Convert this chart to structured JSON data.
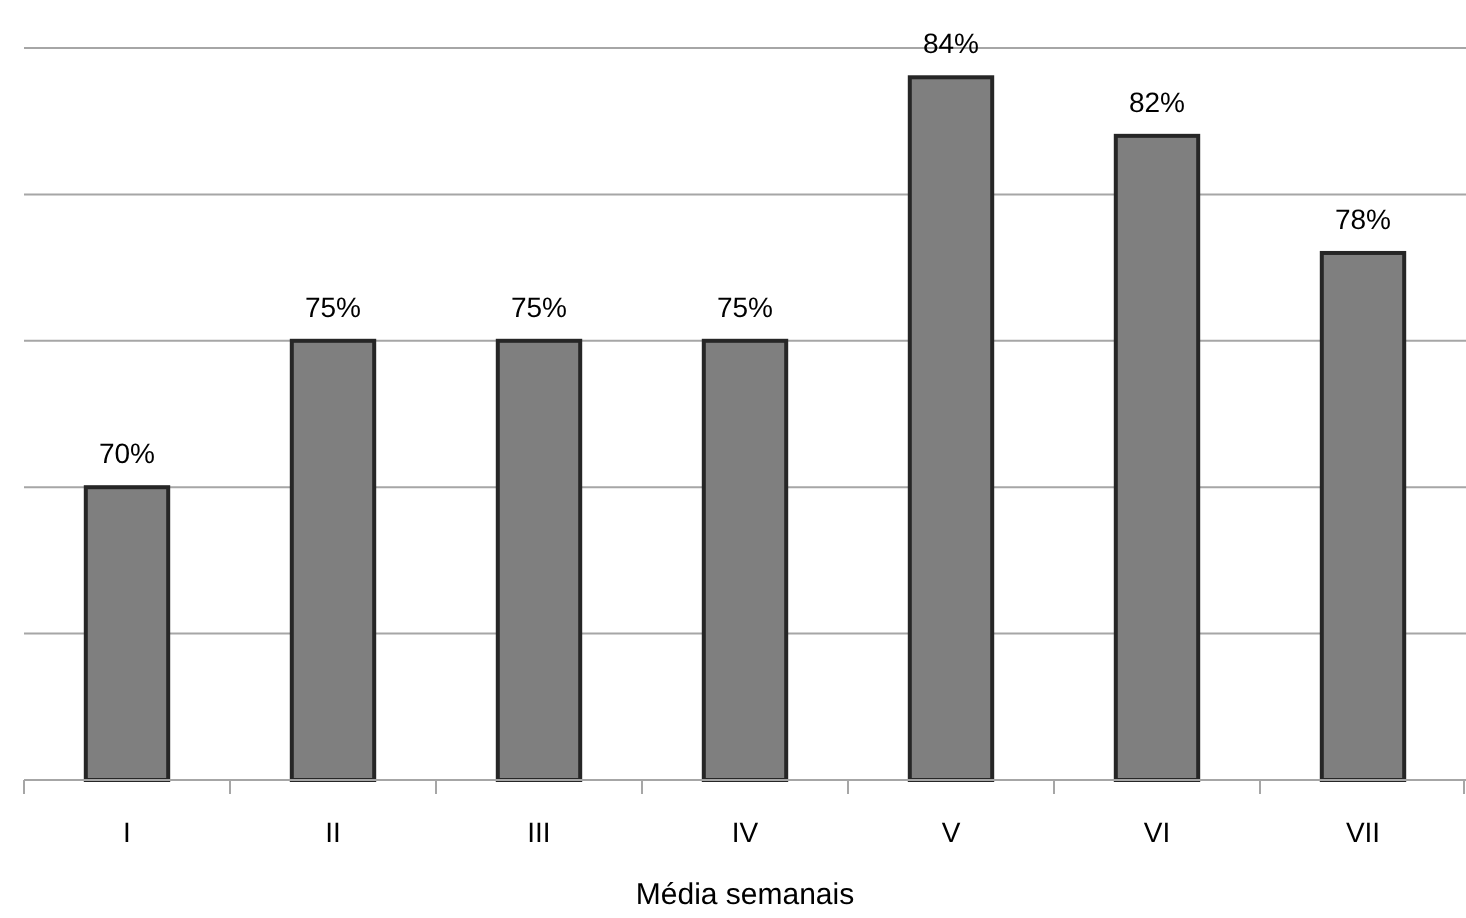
{
  "chart_data": {
    "type": "bar",
    "xlabel": "Média semanais",
    "categories": [
      "I",
      "II",
      "III",
      "IV",
      "V",
      "VI",
      "VII"
    ],
    "values": [
      70,
      75,
      75,
      75,
      84,
      82,
      78
    ],
    "value_labels": [
      "70%",
      "75%",
      "75%",
      "75%",
      "84%",
      "82%",
      "78%"
    ],
    "color": "#7f7f7f",
    "ylim": [
      60,
      85
    ],
    "yticks": [
      {
        "value": 60,
        "label": null
      },
      {
        "value": 65,
        "label": null
      },
      {
        "value": 70,
        "label": null
      },
      {
        "value": 75,
        "label": null
      },
      {
        "value": 80,
        "label": null
      },
      {
        "value": 85,
        "label": null
      }
    ],
    "grid": "y",
    "tick_labels": "x"
  }
}
